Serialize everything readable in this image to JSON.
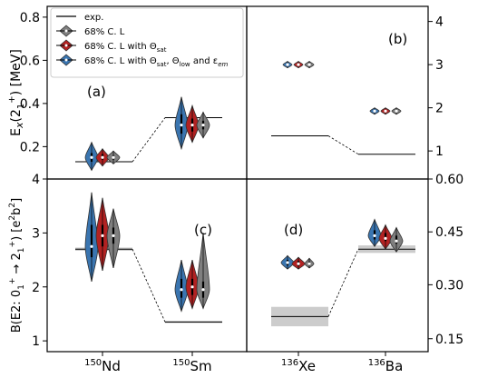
{
  "chart_data": [
    {
      "panel": "a",
      "type": "violin",
      "ylabel": "E_x(2_1^+) [MeV]",
      "ylim": [
        0.05,
        0.85
      ],
      "yticks": [
        0.2,
        0.4,
        0.6,
        0.8
      ],
      "categories": [
        "150Nd",
        "150Sm"
      ],
      "experiment": [
        {
          "x": "150Nd",
          "value": 0.13
        },
        {
          "x": "150Sm",
          "value": 0.334
        }
      ],
      "series": [
        {
          "name": "68% C. L with Θsat, Θlow and εem",
          "values": [
            {
              "x": "150Nd",
              "median": 0.15,
              "min": 0.09,
              "max": 0.22,
              "q1": 0.13,
              "q3": 0.17
            },
            {
              "x": "150Sm",
              "median": 0.3,
              "min": 0.19,
              "max": 0.43,
              "q1": 0.26,
              "q3": 0.35
            }
          ]
        },
        {
          "name": "68% C. L with Θsat",
          "values": [
            {
              "x": "150Nd",
              "median": 0.15,
              "min": 0.11,
              "max": 0.19,
              "q1": 0.14,
              "q3": 0.165
            },
            {
              "x": "150Sm",
              "median": 0.3,
              "min": 0.22,
              "max": 0.39,
              "q1": 0.27,
              "q3": 0.33
            }
          ]
        },
        {
          "name": "68% C. L",
          "values": [
            {
              "x": "150Nd",
              "median": 0.15,
              "min": 0.12,
              "max": 0.18,
              "q1": 0.14,
              "q3": 0.16
            },
            {
              "x": "150Sm",
              "median": 0.3,
              "min": 0.24,
              "max": 0.36,
              "q1": 0.28,
              "q3": 0.32
            }
          ]
        }
      ]
    },
    {
      "panel": "b",
      "type": "violin",
      "ylabel": "",
      "ylim": [
        0.05,
        0.85
      ],
      "yticks_right": [
        {
          "value": 0.18,
          "label": "1"
        },
        {
          "value": 0.38,
          "label": "2"
        },
        {
          "value": 0.58,
          "label": "3"
        },
        {
          "value": 0.78,
          "label": "4"
        }
      ],
      "categories": [
        "136Xe",
        "136Ba"
      ],
      "experiment": [
        {
          "x": "136Xe",
          "value": 0.25
        },
        {
          "x": "136Ba",
          "value": 0.165
        }
      ],
      "series": [
        {
          "name": "68% C. L with Θsat, Θlow and εem",
          "values": [
            {
              "x": "136Xe",
              "median": 0.58,
              "min": 0.565,
              "max": 0.595,
              "q1": 0.575,
              "q3": 0.585
            },
            {
              "x": "136Ba",
              "median": 0.365,
              "min": 0.35,
              "max": 0.38,
              "q1": 0.36,
              "q3": 0.37
            }
          ]
        },
        {
          "name": "68% C. L with Θsat",
          "values": [
            {
              "x": "136Xe",
              "median": 0.58,
              "min": 0.565,
              "max": 0.595,
              "q1": 0.575,
              "q3": 0.585
            },
            {
              "x": "136Ba",
              "median": 0.365,
              "min": 0.35,
              "max": 0.38,
              "q1": 0.36,
              "q3": 0.37
            }
          ]
        },
        {
          "name": "68% C. L",
          "values": [
            {
              "x": "136Xe",
              "median": 0.58,
              "min": 0.565,
              "max": 0.595,
              "q1": 0.575,
              "q3": 0.585
            },
            {
              "x": "136Ba",
              "median": 0.365,
              "min": 0.35,
              "max": 0.38,
              "q1": 0.36,
              "q3": 0.37
            }
          ]
        }
      ]
    },
    {
      "panel": "c",
      "type": "violin",
      "ylabel": "B(E2: 0_1^+ → 2_1^+) [e^2b^2]",
      "ylim": [
        0.8,
        4.0
      ],
      "yticks": [
        1,
        2,
        3,
        4
      ],
      "categories": [
        "150Nd",
        "150Sm"
      ],
      "experiment": [
        {
          "x": "150Nd",
          "value": 2.7,
          "unc": 0.03
        },
        {
          "x": "150Sm",
          "value": 1.35,
          "unc": 0.02
        }
      ],
      "series": [
        {
          "name": "68% C. L with Θsat, Θlow and εem",
          "values": [
            {
              "x": "150Nd",
              "median": 2.75,
              "min": 2.1,
              "max": 3.75,
              "q1": 2.55,
              "q3": 3.15
            },
            {
              "x": "150Sm",
              "median": 1.95,
              "min": 1.55,
              "max": 2.5,
              "q1": 1.8,
              "q3": 2.15
            }
          ]
        },
        {
          "name": "68% C. L with Θsat",
          "values": [
            {
              "x": "150Nd",
              "median": 2.95,
              "min": 2.3,
              "max": 3.65,
              "q1": 2.75,
              "q3": 3.15
            },
            {
              "x": "150Sm",
              "median": 2.0,
              "min": 1.6,
              "max": 2.5,
              "q1": 1.85,
              "q3": 2.15
            }
          ]
        },
        {
          "name": "68% C. L",
          "values": [
            {
              "x": "150Nd",
              "median": 2.95,
              "min": 2.35,
              "max": 3.45,
              "q1": 2.8,
              "q3": 3.1
            },
            {
              "x": "150Sm",
              "median": 1.95,
              "min": 1.6,
              "max": 3.0,
              "q1": 1.8,
              "q3": 2.1
            }
          ]
        }
      ]
    },
    {
      "panel": "d",
      "type": "violin",
      "ylabel": "",
      "ylim": [
        0.8,
        4.0
      ],
      "yticks_right": [
        {
          "value": 1.04,
          "label": "0.15"
        },
        {
          "value": 2.04,
          "label": "0.30"
        },
        {
          "value": 3.02,
          "label": "0.45"
        },
        {
          "value": 4.0,
          "label": "0.60"
        }
      ],
      "categories": [
        "136Xe",
        "136Ba"
      ],
      "experiment": [
        {
          "x": "136Xe",
          "value": 1.45,
          "unc": 0.18
        },
        {
          "x": "136Ba",
          "value": 2.7,
          "unc": 0.07
        }
      ],
      "series": [
        {
          "name": "68% C. L with Θsat, Θlow and εem",
          "values": [
            {
              "x": "136Xe",
              "median": 2.45,
              "min": 2.33,
              "max": 2.58,
              "q1": 2.4,
              "q3": 2.5
            },
            {
              "x": "136Ba",
              "median": 2.95,
              "min": 2.75,
              "max": 3.25,
              "q1": 2.88,
              "q3": 3.05
            }
          ]
        },
        {
          "name": "68% C. L with Θsat",
          "values": [
            {
              "x": "136Xe",
              "median": 2.43,
              "min": 2.33,
              "max": 2.55,
              "q1": 2.39,
              "q3": 2.48
            },
            {
              "x": "136Ba",
              "median": 2.9,
              "min": 2.7,
              "max": 3.15,
              "q1": 2.85,
              "q3": 3.0
            }
          ]
        },
        {
          "name": "68% C. L",
          "values": [
            {
              "x": "136Xe",
              "median": 2.43,
              "min": 2.35,
              "max": 2.53,
              "q1": 2.4,
              "q3": 2.47
            },
            {
              "x": "136Ba",
              "median": 2.85,
              "min": 2.65,
              "max": 3.1,
              "q1": 2.8,
              "q3": 2.95
            }
          ]
        }
      ]
    }
  ],
  "legend": {
    "placement": "upper-left of panel (a)",
    "entries": [
      {
        "label": "exp.",
        "kind": "line"
      },
      {
        "label": "68% C. L",
        "kind": "violin",
        "color": "#7f7f7f"
      },
      {
        "label": "68% C. L with Θsat",
        "kind": "violin",
        "color": "#b22222"
      },
      {
        "label": "68% C. L with Θsat, Θlow and εem",
        "kind": "violin",
        "color": "#3a75b0"
      }
    ]
  },
  "panel_labels": [
    "(a)",
    "(b)",
    "(c)",
    "(d)"
  ],
  "xtick_labels": [
    "150Nd",
    "150Sm",
    "136Xe",
    "136Ba"
  ],
  "colors": {
    "blue": "#3a75b0",
    "red": "#b22222",
    "gray": "#7f7f7f",
    "band": "#cccccc"
  }
}
